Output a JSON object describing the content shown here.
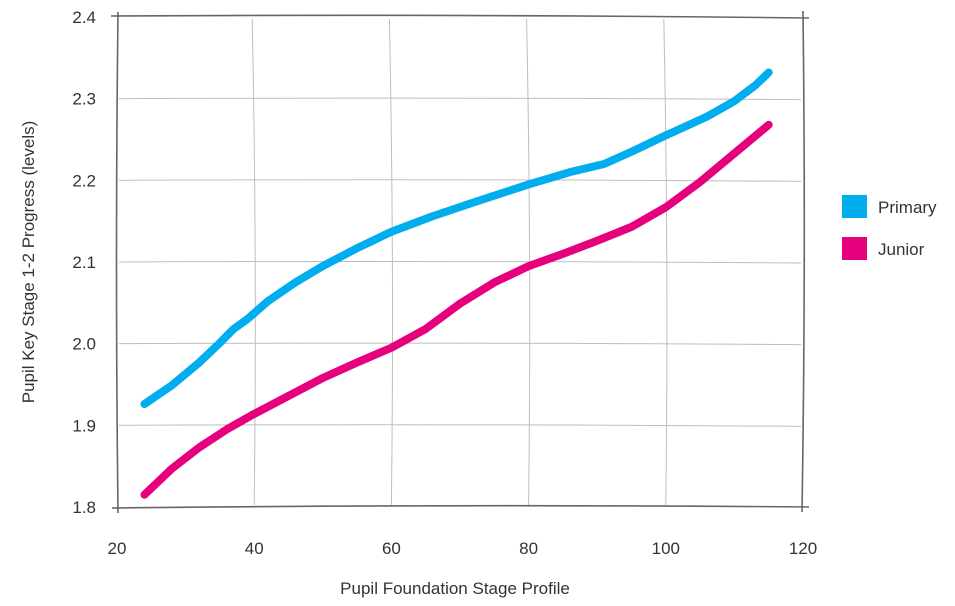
{
  "chart_data": {
    "type": "line",
    "title": "",
    "xlabel": "Pupil Foundation Stage Profile",
    "ylabel": "Pupil Key Stage 1-2 Progress (levels)",
    "xlim": [
      20,
      120
    ],
    "ylim": [
      1.8,
      2.4
    ],
    "xticks": [
      20,
      40,
      60,
      80,
      100,
      120
    ],
    "yticks": [
      1.8,
      1.9,
      2.0,
      2.1,
      2.2,
      2.3,
      2.4
    ],
    "xtick_labels": [
      "20",
      "40",
      "60",
      "80",
      "100",
      "120"
    ],
    "ytick_labels": [
      "1.8",
      "1.9",
      "2.0",
      "2.1",
      "2.2",
      "2.3",
      "2.4"
    ],
    "grid": true,
    "legend": "right",
    "series": [
      {
        "name": "Primary",
        "color": "#00aeef",
        "x": [
          24,
          28,
          32,
          35,
          37,
          39,
          42,
          46,
          50,
          55,
          60,
          66,
          72,
          80,
          86,
          91,
          95,
          100,
          106,
          110,
          113,
          115
        ],
        "y": [
          1.926,
          1.949,
          1.977,
          2.001,
          2.018,
          2.03,
          2.052,
          2.075,
          2.095,
          2.117,
          2.137,
          2.156,
          2.173,
          2.195,
          2.21,
          2.22,
          2.235,
          2.255,
          2.278,
          2.297,
          2.316,
          2.332
        ]
      },
      {
        "name": "Junior",
        "color": "#e6007e",
        "x": [
          24,
          28,
          32,
          36,
          40,
          45,
          50,
          55,
          60,
          65,
          70,
          75,
          80,
          85,
          90,
          95,
          100,
          105,
          110,
          115
        ],
        "y": [
          1.815,
          1.847,
          1.873,
          1.895,
          1.914,
          1.936,
          1.958,
          1.977,
          1.995,
          2.018,
          2.049,
          2.075,
          2.095,
          2.11,
          2.126,
          2.143,
          2.167,
          2.198,
          2.233,
          2.268
        ]
      }
    ]
  }
}
